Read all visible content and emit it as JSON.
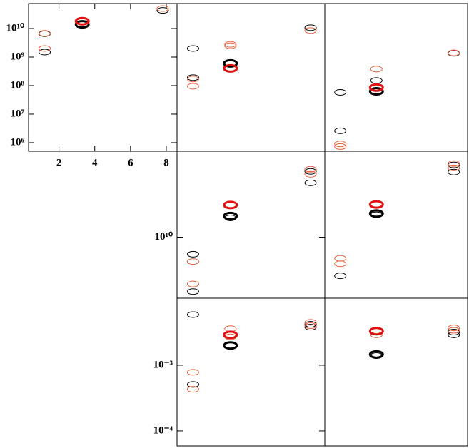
{
  "chart_data": [
    {
      "type": "scatter",
      "log_y": true,
      "xlim": [
        0.3,
        8.6
      ],
      "ylim": [
        500000.0,
        75000000000.0
      ],
      "xticks": [
        2,
        4,
        6,
        8
      ],
      "yticks": [
        {
          "value": 1000000.0,
          "label": "10⁶"
        },
        {
          "value": 10000000.0,
          "label": "10⁷"
        },
        {
          "value": 100000000.0,
          "label": "10⁸"
        },
        {
          "value": 1000000000.0,
          "label": "10⁹"
        },
        {
          "value": 10000000000.0,
          "label": "10¹⁰"
        }
      ],
      "series": [
        {
          "color": "#000000",
          "line_width": 1,
          "x": [
            1.2,
            1.2,
            7.8
          ],
          "values": [
            6600000000.0,
            1500000000.0,
            43000000000.0
          ]
        },
        {
          "color": "#e8603c",
          "line_width": 1,
          "x": [
            1.2,
            1.2,
            7.8
          ],
          "values": [
            6800000000.0,
            2000000000.0,
            50000000000.0
          ]
        },
        {
          "color": "#000000",
          "line_width": 3,
          "x": [
            3.3
          ],
          "values": [
            14000000000.0
          ]
        },
        {
          "color": "#e01010",
          "line_width": 3,
          "x": [
            3.3
          ],
          "values": [
            18000000000.0
          ]
        }
      ]
    },
    {
      "type": "scatter",
      "log_y": true,
      "xlim": [
        0.3,
        8.6
      ],
      "ylim": [
        500000.0,
        75000000000.0
      ],
      "series": [
        {
          "color": "#000000",
          "line_width": 1,
          "x": [
            1.2,
            1.2,
            7.8
          ],
          "values": [
            2000000000.0,
            190000000.0,
            10700000000.0
          ]
        },
        {
          "color": "#e8603c",
          "line_width": 1,
          "x": [
            1.2,
            1.2,
            3.3,
            3.3,
            7.8
          ],
          "values": [
            170000000.0,
            95000000.0,
            2800000000.0,
            2500000000.0,
            8500000000.0
          ]
        },
        {
          "color": "#000000",
          "line_width": 3,
          "x": [
            3.3
          ],
          "values": [
            600000000.0
          ]
        },
        {
          "color": "#e01010",
          "line_width": 3,
          "x": [
            3.3
          ],
          "values": [
            400000000.0
          ]
        }
      ]
    },
    {
      "type": "scatter",
      "log_y": true,
      "xlim": [
        0.3,
        8.6
      ],
      "ylim": [
        500000.0,
        75000000000.0
      ],
      "series": [
        {
          "color": "#000000",
          "line_width": 1,
          "x": [
            1.2,
            1.2,
            3.3,
            7.8
          ],
          "values": [
            58000000.0,
            2600000.0,
            150000000.0,
            1350000000.0
          ]
        },
        {
          "color": "#e8603c",
          "line_width": 1,
          "x": [
            1.2,
            1.2,
            3.3,
            7.8
          ],
          "values": [
            900000.0,
            730000.0,
            380000000.0,
            1400000000.0
          ]
        },
        {
          "color": "#000000",
          "line_width": 3,
          "x": [
            3.3
          ],
          "values": [
            63000000.0
          ]
        },
        {
          "color": "#e01010",
          "line_width": 3,
          "x": [
            3.3
          ],
          "values": [
            85000000.0
          ]
        }
      ]
    },
    {
      "type": "scatter",
      "log_y": true,
      "xlim": [
        0.3,
        8.6
      ],
      "ylim": [
        4700000000.0,
        29000000000.0
      ],
      "yticks": [
        {
          "value": 10000000000.0,
          "label": "10¹⁰"
        }
      ],
      "series": [
        {
          "color": "#000000",
          "line_width": 1,
          "x": [
            1.2,
            1.2,
            3.3,
            7.8,
            7.8
          ],
          "values": [
            8100000000.0,
            5100000000.0,
            12700000000.0,
            22600000000.0,
            19600000000.0
          ]
        },
        {
          "color": "#e8603c",
          "line_width": 1,
          "x": [
            1.2,
            1.2,
            7.8,
            7.8
          ],
          "values": [
            7400000000.0,
            5600000000.0,
            23200000000.0,
            21800000000.0
          ]
        },
        {
          "color": "#000000",
          "line_width": 3,
          "x": [
            3.3
          ],
          "values": [
            13000000000.0
          ]
        },
        {
          "color": "#e01010",
          "line_width": 3,
          "x": [
            3.3
          ],
          "values": [
            14900000000.0
          ]
        }
      ]
    },
    {
      "type": "scatter",
      "log_y": true,
      "xlim": [
        0.3,
        8.6
      ],
      "ylim": [
        4700000000.0,
        29000000000.0
      ],
      "series": [
        {
          "color": "#000000",
          "line_width": 1,
          "x": [
            1.2,
            3.3,
            7.8,
            7.8
          ],
          "values": [
            6200000000.0,
            13200000000.0,
            24500000000.0,
            22400000000.0
          ]
        },
        {
          "color": "#e8603c",
          "line_width": 1,
          "x": [
            1.2,
            1.2,
            7.8,
            7.8
          ],
          "values": [
            7700000000.0,
            7200000000.0,
            24900000000.0,
            23600000000.0
          ]
        },
        {
          "color": "#000000",
          "line_width": 3,
          "x": [
            3.3
          ],
          "values": [
            13400000000.0
          ]
        },
        {
          "color": "#e01010",
          "line_width": 3,
          "x": [
            3.3
          ],
          "values": [
            15000000000.0
          ]
        }
      ]
    },
    {
      "type": "scatter",
      "log_y": true,
      "xlim": [
        0.3,
        8.6
      ],
      "ylim": [
        5.9e-05,
        0.0105
      ],
      "yticks": [
        {
          "value": 0.001,
          "label": "10⁻³"
        },
        {
          "value": 0.0001,
          "label": "10⁻⁴"
        }
      ],
      "series": [
        {
          "color": "#000000",
          "line_width": 1,
          "x": [
            1.2,
            1.2,
            7.8,
            7.8
          ],
          "values": [
            0.0059,
            0.00051,
            0.0042,
            0.0038
          ]
        },
        {
          "color": "#e8603c",
          "line_width": 1,
          "x": [
            1.2,
            1.2,
            3.3,
            3.3,
            7.8,
            7.8
          ],
          "values": [
            0.00078,
            0.00043,
            0.0036,
            0.0027,
            0.0045,
            0.004
          ]
        },
        {
          "color": "#000000",
          "line_width": 3,
          "x": [
            3.3
          ],
          "values": [
            0.002
          ]
        },
        {
          "color": "#e01010",
          "line_width": 3,
          "x": [
            3.3
          ],
          "values": [
            0.0029
          ]
        }
      ]
    },
    {
      "type": "scatter",
      "log_y": true,
      "xlim": [
        0.3,
        8.6
      ],
      "ylim": [
        5.9e-05,
        0.0105
      ],
      "series": [
        {
          "color": "#000000",
          "line_width": 1,
          "x": [
            3.3,
            7.8,
            7.8
          ],
          "values": [
            0.0014,
            0.0032,
            0.0029
          ]
        },
        {
          "color": "#e8603c",
          "line_width": 1,
          "x": [
            3.3,
            7.8,
            7.8
          ],
          "values": [
            0.0029,
            0.0037,
            0.0034
          ]
        },
        {
          "color": "#000000",
          "line_width": 3,
          "x": [
            3.3
          ],
          "values": [
            0.00146
          ]
        },
        {
          "color": "#e01010",
          "line_width": 3,
          "x": [
            3.3
          ],
          "values": [
            0.0033
          ]
        }
      ]
    }
  ]
}
